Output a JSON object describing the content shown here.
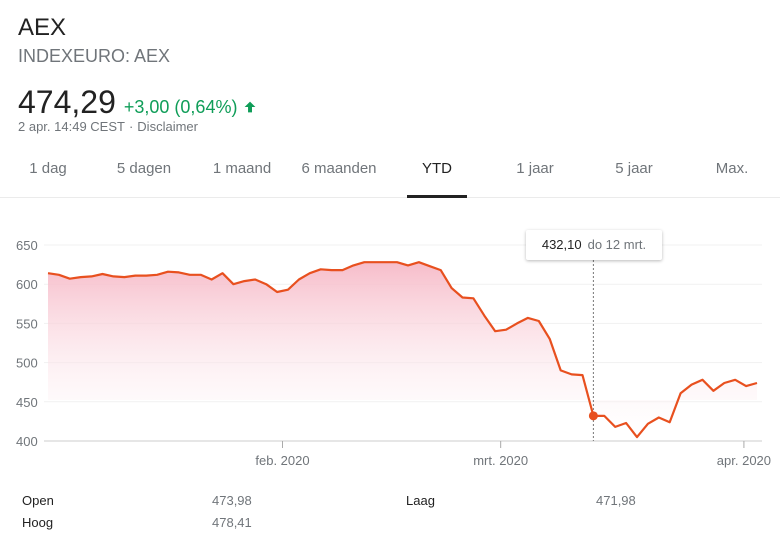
{
  "header": {
    "title": "AEX",
    "subtitle": "INDEXEURO: AEX",
    "price": "474,29",
    "change": "+3,00 (0,64%)",
    "change_direction": "up",
    "change_color": "#0f9d58",
    "timestamp": "2 apr. 14:49 CEST",
    "separator": "·",
    "disclaimer": "Disclaimer"
  },
  "tabs": [
    {
      "label": "1 dag"
    },
    {
      "label": "5 dagen"
    },
    {
      "label": "1 maand"
    },
    {
      "label": "6 maanden"
    },
    {
      "label": "YTD",
      "active": true
    },
    {
      "label": "1 jaar"
    },
    {
      "label": "5 jaar"
    },
    {
      "label": "Max."
    }
  ],
  "tooltip": {
    "value": "432,10",
    "date": "do 12 mrt."
  },
  "stats": {
    "open_label": "Open",
    "open_value": "473,98",
    "high_label": "Hoog",
    "high_value": "478,41",
    "low_label": "Laag",
    "low_value": "471,98"
  },
  "colors": {
    "line": "#e8501f",
    "fill_top": "#f6b9c7",
    "fill_bottom": "#ffffff",
    "grid": "#f1f1f1",
    "axis": "#cccccc"
  },
  "chart_data": {
    "type": "area",
    "title": "AEX YTD",
    "xlabel": "",
    "ylabel": "",
    "ylim": [
      400,
      650
    ],
    "yticks": [
      400,
      450,
      500,
      550,
      600,
      650
    ],
    "xticks": [
      "feb. 2020",
      "mrt. 2020",
      "apr. 2020"
    ],
    "grid": true,
    "legend": "none",
    "x": [
      "2 jan",
      "3 jan",
      "6 jan",
      "7 jan",
      "8 jan",
      "9 jan",
      "10 jan",
      "13 jan",
      "14 jan",
      "15 jan",
      "16 jan",
      "17 jan",
      "20 jan",
      "21 jan",
      "22 jan",
      "23 jan",
      "24 jan",
      "27 jan",
      "28 jan",
      "29 jan",
      "30 jan",
      "31 jan",
      "3 feb",
      "4 feb",
      "5 feb",
      "6 feb",
      "7 feb",
      "10 feb",
      "11 feb",
      "12 feb",
      "13 feb",
      "14 feb",
      "17 feb",
      "18 feb",
      "19 feb",
      "20 feb",
      "21 feb",
      "24 feb",
      "25 feb",
      "26 feb",
      "27 feb",
      "28 feb",
      "2 mrt",
      "3 mrt",
      "4 mrt",
      "5 mrt",
      "6 mrt",
      "9 mrt",
      "10 mrt",
      "11 mrt",
      "12 mrt",
      "13 mrt",
      "16 mrt",
      "17 mrt",
      "18 mrt",
      "19 mrt",
      "20 mrt",
      "23 mrt",
      "24 mrt",
      "25 mrt",
      "26 mrt",
      "27 mrt",
      "30 mrt",
      "31 mrt",
      "1 apr",
      "2 apr"
    ],
    "values": [
      614,
      612,
      607,
      609,
      610,
      613,
      610,
      609,
      611,
      611,
      612,
      616,
      615,
      612,
      612,
      606,
      614,
      600,
      604,
      606,
      600,
      590,
      593,
      606,
      614,
      619,
      618,
      618,
      624,
      628,
      628,
      628,
      628,
      624,
      628,
      623,
      618,
      595,
      583,
      582,
      560,
      540,
      542,
      550,
      557,
      553,
      530,
      490,
      485,
      484,
      432,
      432,
      418,
      423,
      405,
      422,
      430,
      424,
      461,
      472,
      478,
      464,
      474,
      478,
      470,
      474
    ],
    "highlight": {
      "x": "12 mrt",
      "y": 432.1
    }
  }
}
